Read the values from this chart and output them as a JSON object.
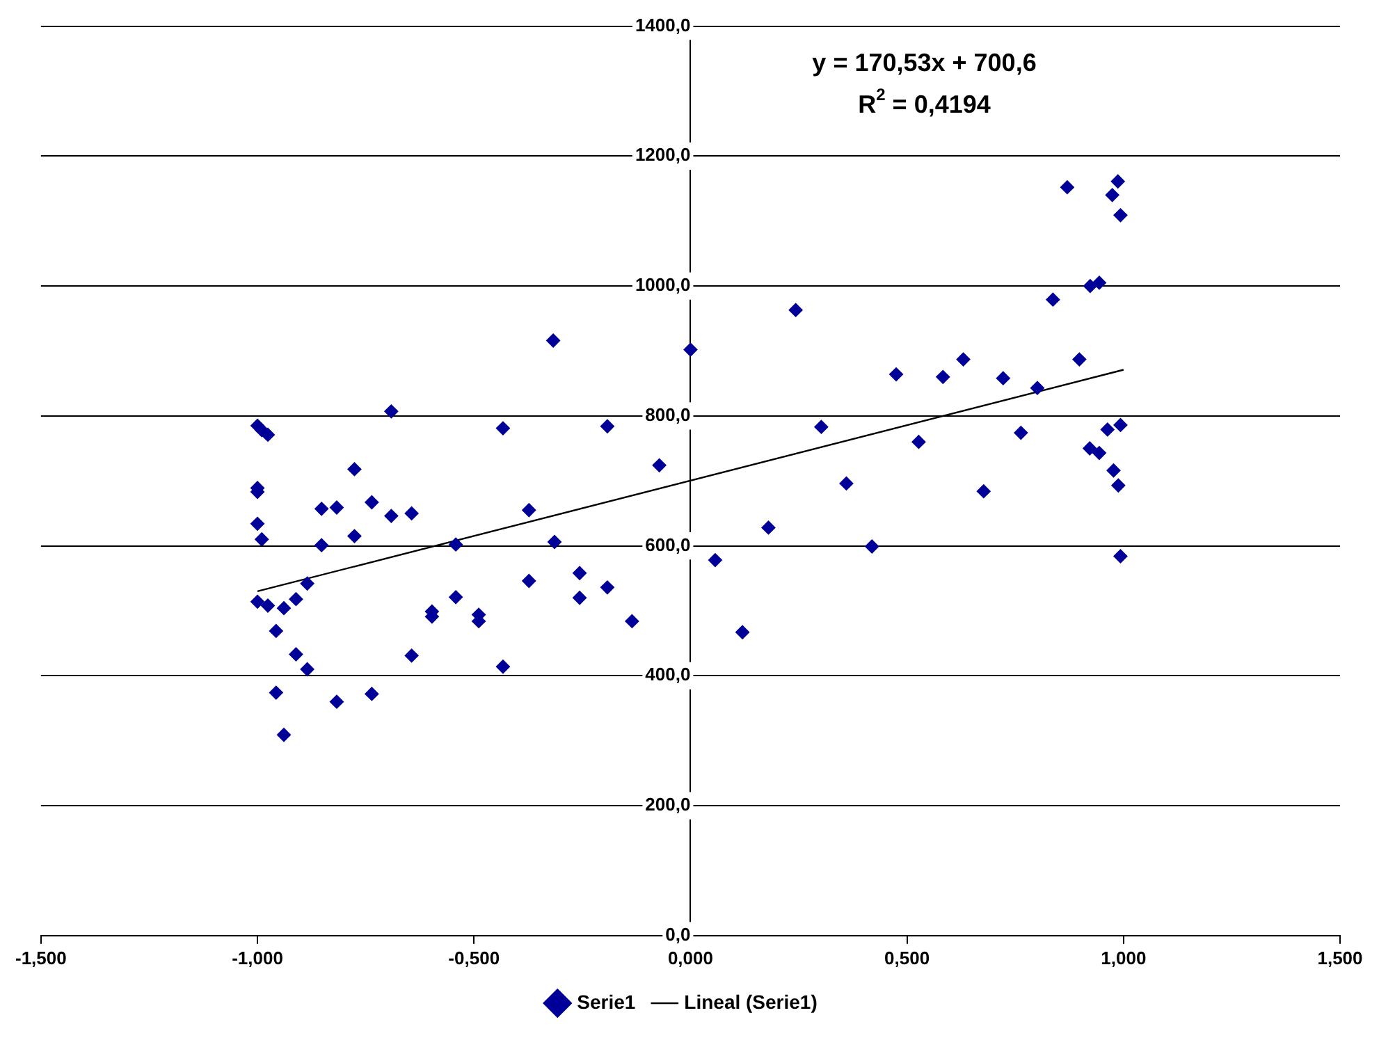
{
  "chart_data": {
    "type": "scatter",
    "legend": "bottom",
    "grid": "y",
    "xlim": [
      -1.5,
      1.5
    ],
    "xticks": [
      {
        "value": -1.5,
        "label": "-1,500"
      },
      {
        "value": -1,
        "label": "-1,000"
      },
      {
        "value": -0.5,
        "label": "-0,500"
      },
      {
        "value": 0,
        "label": "0,000"
      },
      {
        "value": 0.5,
        "label": "0,500"
      },
      {
        "value": 1,
        "label": "1,000"
      },
      {
        "value": 1.5,
        "label": "1,500"
      }
    ],
    "ylim": [
      0,
      1400
    ],
    "yticks": [
      {
        "value": 0,
        "label": "0,0"
      },
      {
        "value": 200,
        "label": "200,0"
      },
      {
        "value": 400,
        "label": "400,0"
      },
      {
        "value": 600,
        "label": "600,0"
      },
      {
        "value": 800,
        "label": "800,0"
      },
      {
        "value": 1000,
        "label": "1000,0"
      },
      {
        "value": 1200,
        "label": "1200,0"
      },
      {
        "value": 1400,
        "label": "1400,0"
      }
    ],
    "annotations": [
      "y = 170,53x + 700,6",
      "R$^{2}$ = 0,4194"
    ],
    "series": [
      {
        "name": "Serie1",
        "color": "#000099",
        "marker": "diamond",
        "x": [
          -1.0,
          -0.99,
          -0.976,
          -1.0,
          -1.0,
          -1.0,
          -0.99,
          -1.0,
          -0.976,
          -0.957,
          -0.939,
          -0.911,
          -0.885,
          -0.957,
          -0.939,
          -0.911,
          -0.885,
          -0.852,
          -0.852,
          -0.817,
          -0.776,
          -0.776,
          -0.817,
          -0.736,
          -0.736,
          -0.691,
          -0.691,
          -0.644,
          -0.644,
          -0.597,
          -0.597,
          -0.542,
          -0.542,
          -0.489,
          -0.489,
          -0.433,
          -0.433,
          -0.373,
          -0.373,
          -0.314,
          -0.317,
          -0.256,
          -0.256,
          -0.192,
          -0.192,
          -0.135,
          -0.072,
          0.0,
          0.057,
          0.12,
          0.18,
          0.243,
          0.302,
          0.36,
          0.419,
          0.475,
          0.527,
          0.583,
          0.63,
          0.677,
          0.722,
          0.763,
          0.801,
          0.837,
          0.87,
          0.898,
          0.922,
          0.923,
          0.944,
          0.944,
          0.963,
          0.974,
          0.977,
          0.987,
          0.988,
          0.993,
          0.993,
          0.993
        ],
        "values": [
          785,
          778,
          771,
          689,
          683,
          634,
          610,
          514,
          508,
          469,
          504,
          518,
          542,
          374,
          309,
          433,
          410,
          601,
          657,
          659,
          718,
          615,
          360,
          667,
          372,
          646,
          807,
          650,
          431,
          499,
          491,
          602,
          521,
          494,
          484,
          781,
          414,
          655,
          546,
          606,
          916,
          558,
          520,
          784,
          536,
          484,
          724,
          902,
          578,
          467,
          628,
          963,
          783,
          696,
          599,
          864,
          760,
          860,
          887,
          684,
          858,
          774,
          843,
          979,
          1152,
          887,
          750,
          1000,
          1005,
          743,
          779,
          1140,
          716,
          1161,
          693,
          1109,
          786,
          584
        ]
      },
      {
        "type": "line",
        "name": "Lineal (Serie1)",
        "color": "#000000",
        "x": [
          -1,
          1
        ],
        "values": [
          530,
          871
        ]
      }
    ]
  }
}
